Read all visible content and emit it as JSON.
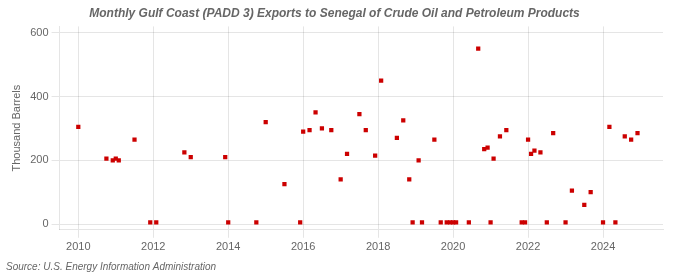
{
  "chart_data": {
    "type": "scatter",
    "title": "Monthly Gulf Coast (PADD 3) Exports to Senegal of Crude Oil and Petroleum Products",
    "ylabel": "Thousand Barrels",
    "annotations": [
      "Source: U.S. Energy Information Administration"
    ],
    "color": "#cc0000",
    "marker": "square",
    "grid": true,
    "xlim": [
      2009.5,
      2025.6
    ],
    "xticks": [
      2010,
      2012,
      2014,
      2016,
      2018,
      2020,
      2022,
      2024
    ],
    "ylim": [
      -18,
      620
    ],
    "yticks": [
      0,
      200,
      400,
      600
    ],
    "x": [
      2010.0,
      2010.75,
      2010.92,
      2011.0,
      2011.08,
      2011.5,
      2011.92,
      2012.08,
      2012.83,
      2013.0,
      2013.92,
      2014.0,
      2014.75,
      2015.0,
      2015.5,
      2015.92,
      2016.0,
      2016.17,
      2016.33,
      2016.5,
      2016.75,
      2017.0,
      2017.17,
      2017.5,
      2017.67,
      2017.92,
      2018.08,
      2018.5,
      2018.67,
      2018.83,
      2018.92,
      2019.08,
      2019.17,
      2019.5,
      2019.67,
      2019.83,
      2019.92,
      2020.0,
      2020.08,
      2020.42,
      2020.67,
      2020.83,
      2020.92,
      2021.0,
      2021.08,
      2021.25,
      2021.42,
      2021.83,
      2021.92,
      2022.0,
      2022.08,
      2022.17,
      2022.33,
      2022.5,
      2022.67,
      2023.0,
      2023.17,
      2023.5,
      2023.67,
      2024.0,
      2024.17,
      2024.33,
      2024.58,
      2024.75,
      2024.92
    ],
    "values": [
      305,
      205,
      200,
      205,
      200,
      265,
      5,
      5,
      225,
      210,
      210,
      5,
      5,
      320,
      125,
      5,
      290,
      295,
      350,
      300,
      295,
      140,
      220,
      345,
      295,
      215,
      450,
      270,
      325,
      140,
      5,
      200,
      5,
      265,
      5,
      5,
      5,
      5,
      5,
      5,
      550,
      235,
      240,
      5,
      205,
      275,
      295,
      5,
      5,
      265,
      220,
      230,
      225,
      5,
      285,
      5,
      105,
      60,
      100,
      5,
      305,
      5,
      275,
      265,
      285
    ]
  }
}
